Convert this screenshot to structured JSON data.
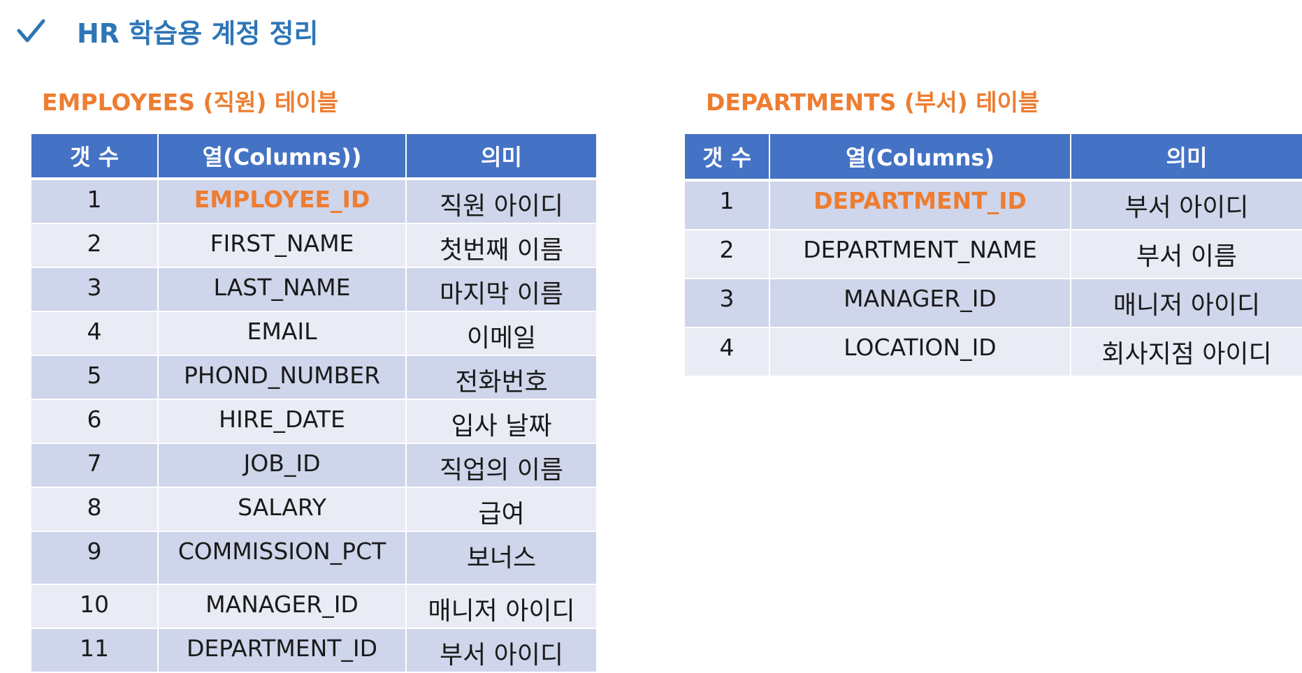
{
  "page": {
    "title": "HR 학습용 계정 정리",
    "icon": "checkmark-icon",
    "accent_color": "#2E75B6",
    "section_color": "#ED7D31",
    "header_color": "#4472C4",
    "row_odd_color": "#CFD5EA",
    "row_even_color": "#E9EBF5"
  },
  "employees": {
    "title": "EMPLOYEES (직원) 테이블",
    "headers": [
      "갯 수",
      "열(Columns))",
      "의미"
    ],
    "rows": [
      {
        "num": "1",
        "column": "EMPLOYEE_ID",
        "meaning": "직원 아이디",
        "key": true
      },
      {
        "num": "2",
        "column": "FIRST_NAME",
        "meaning": "첫번째 이름"
      },
      {
        "num": "3",
        "column": "LAST_NAME",
        "meaning": "마지막 이름"
      },
      {
        "num": "4",
        "column": "EMAIL",
        "meaning": "이메일"
      },
      {
        "num": "5",
        "column": "PHOND_NUMBER",
        "meaning": "전화번호"
      },
      {
        "num": "6",
        "column": "HIRE_DATE",
        "meaning": "입사 날짜"
      },
      {
        "num": "7",
        "column": "JOB_ID",
        "meaning": "직업의 이름"
      },
      {
        "num": "8",
        "column": "SALARY",
        "meaning": "급여"
      },
      {
        "num": "9",
        "column": "COMMISSION_PCT",
        "meaning": "보너스"
      },
      {
        "num": "10",
        "column": "MANAGER_ID",
        "meaning": "매니저 아이디"
      },
      {
        "num": "11",
        "column": "DEPARTMENT_ID",
        "meaning": "부서 아이디"
      }
    ]
  },
  "departments": {
    "title": "DEPARTMENTS (부서) 테이블",
    "headers": [
      "갯 수",
      "열(Columns)",
      "의미"
    ],
    "rows": [
      {
        "num": "1",
        "column": "DEPARTMENT_ID",
        "meaning": "부서 아이디",
        "key": true
      },
      {
        "num": "2",
        "column": "DEPARTMENT_NAME",
        "meaning": "부서 이름"
      },
      {
        "num": "3",
        "column": "MANAGER_ID",
        "meaning": "매니저 아이디"
      },
      {
        "num": "4",
        "column": "LOCATION_ID",
        "meaning": "회사지점 아이디"
      }
    ]
  }
}
